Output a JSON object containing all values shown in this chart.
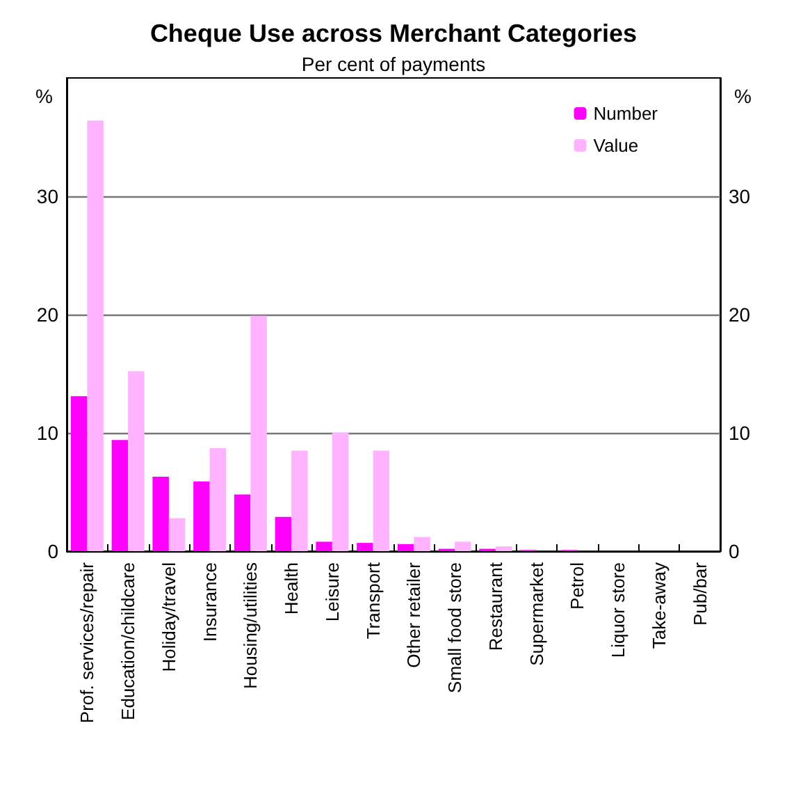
{
  "chart_data": {
    "type": "bar",
    "title": "Cheque Use across Merchant Categories",
    "subtitle": "Per cent of payments",
    "ylabel": "%",
    "y2label": "%",
    "categories": [
      "Prof. services/repair",
      "Education/childcare",
      "Holiday/travel",
      "Insurance",
      "Housing/utilities",
      "Health",
      "Leisure",
      "Transport",
      "Other retailer",
      "Small food store",
      "Restaurant",
      "Supermarket",
      "Petrol",
      "Liquor store",
      "Take-away",
      "Pub/bar"
    ],
    "series": [
      {
        "name": "Number",
        "color": "#ff00ff",
        "values": [
          13.1,
          9.4,
          6.3,
          5.9,
          4.8,
          2.9,
          0.8,
          0.7,
          0.6,
          0.2,
          0.2,
          0.1,
          0.1,
          0,
          0,
          0
        ]
      },
      {
        "name": "Value",
        "color": "#ffb3ff",
        "values": [
          36.4,
          15.2,
          2.8,
          8.7,
          19.9,
          8.5,
          10,
          8.5,
          1.2,
          0.8,
          0.4,
          null,
          null,
          0,
          0,
          0
        ]
      }
    ],
    "ylim": [
      0,
      40
    ],
    "yticks": [
      0,
      10,
      20,
      30
    ],
    "y2lim": [
      0,
      40
    ],
    "y2ticks": [
      0,
      10,
      20,
      30
    ],
    "grid": "y",
    "legend": "top right"
  }
}
